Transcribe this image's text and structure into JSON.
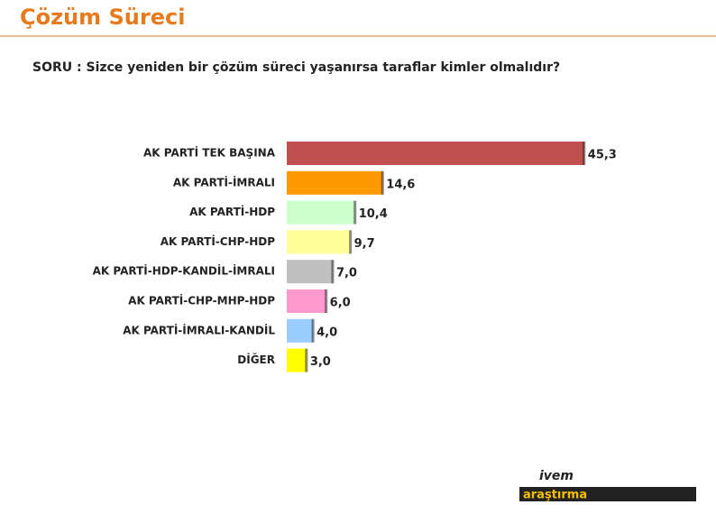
{
  "header": {
    "title": "Çözüm Süreci"
  },
  "chart_data": {
    "type": "bar",
    "orientation": "horizontal",
    "title": "SORU : Sizce yeniden bir çözüm süreci yaşanırsa taraflar kimler olmalıdır?",
    "categories": [
      "AK PARTİ TEK BAŞINA",
      "AK PARTİ-İMRALI",
      "AK PARTİ-HDP",
      "AK PARTİ-CHP-HDP",
      "AK PARTİ-HDP-KANDİL-İMRALI",
      "AK PARTİ-CHP-MHP-HDP",
      "AK PARTİ-İMRALI-KANDİL",
      "DİĞER"
    ],
    "values": [
      45.3,
      14.6,
      10.4,
      9.7,
      7.0,
      6.0,
      4.0,
      3.0
    ],
    "value_labels": [
      "45,3",
      "14,6",
      "10,4",
      "9,7",
      "7,0",
      "6,0",
      "4,0",
      "3,0"
    ],
    "colors": [
      "#c0504d",
      "#ff9900",
      "#ccffcc",
      "#ffff99",
      "#c0c0c0",
      "#ff99cc",
      "#99ccff",
      "#ffff00"
    ]
  },
  "logo": {
    "top": "ivem",
    "bottom": "araştırma"
  }
}
